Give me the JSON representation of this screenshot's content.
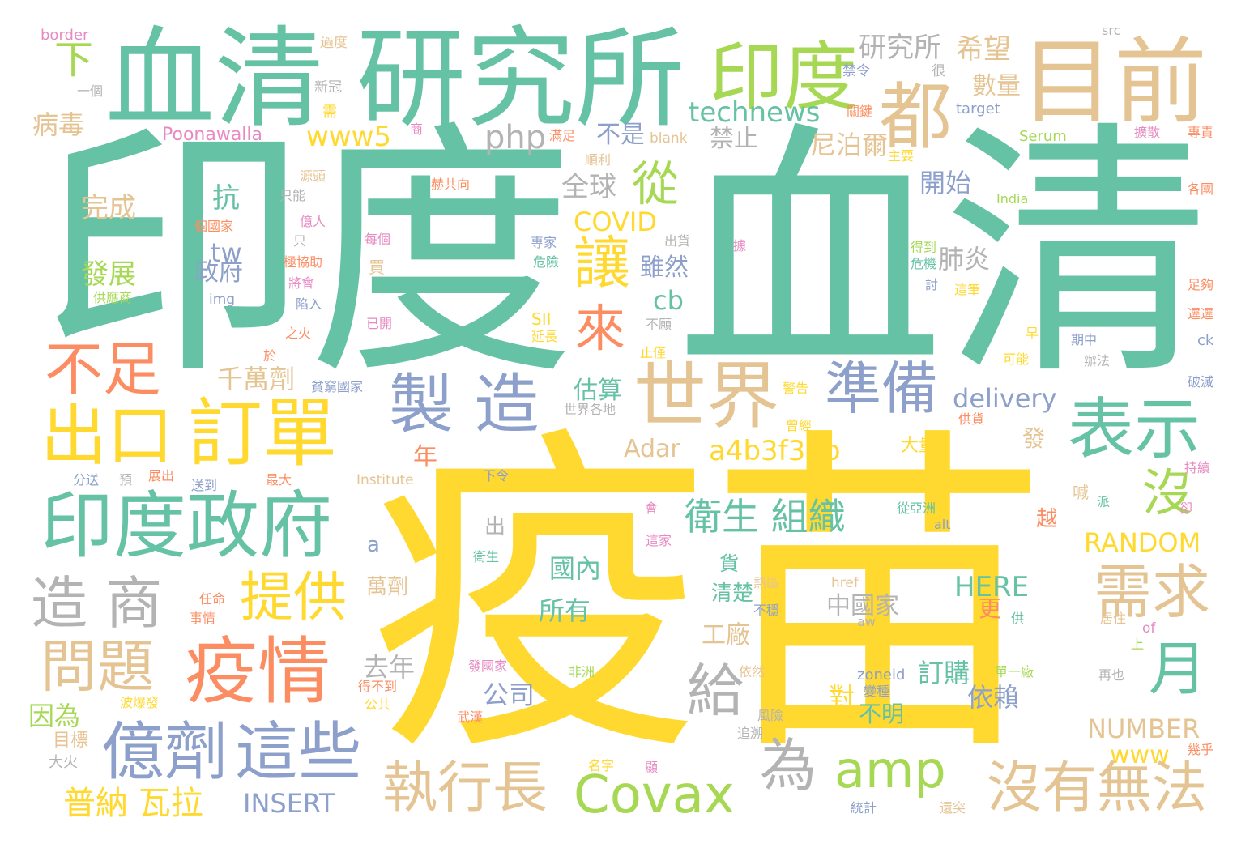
{
  "palette": {
    "teal": "#66c2a5",
    "yellow": "#ffd92f",
    "green": "#a6d854",
    "orange": "#fc8d62",
    "blue": "#8da0cb",
    "tan": "#e5c494",
    "gray": "#b3b3b3",
    "pink": "#e78ac3"
  },
  "words": [
    {
      "id": "w1",
      "text": "印度",
      "c": "teal"
    },
    {
      "id": "w2",
      "text": "血清",
      "c": "teal"
    },
    {
      "id": "w3",
      "text": "疫苗",
      "c": "yellow"
    },
    {
      "id": "w4",
      "text": "血清",
      "c": "teal"
    },
    {
      "id": "w5",
      "text": "研究所",
      "c": "teal"
    },
    {
      "id": "w6",
      "text": "印度",
      "c": "green"
    },
    {
      "id": "w7",
      "text": "目前",
      "c": "tan"
    },
    {
      "id": "w8",
      "text": "都",
      "c": "tan"
    },
    {
      "id": "w9",
      "text": "下",
      "c": "green"
    },
    {
      "id": "w10",
      "text": "研究所",
      "c": "gray"
    },
    {
      "id": "w11",
      "text": "希望",
      "c": "tan"
    },
    {
      "id": "w12",
      "text": "數量",
      "c": "tan"
    },
    {
      "id": "w13",
      "text": "technews",
      "c": "teal"
    },
    {
      "id": "w14",
      "text": "php",
      "c": "gray"
    },
    {
      "id": "w15",
      "text": "www5",
      "c": "yellow"
    },
    {
      "id": "w16",
      "text": "不是",
      "c": "blue"
    },
    {
      "id": "w17",
      "text": "禁止",
      "c": "gray"
    },
    {
      "id": "w18",
      "text": "尼泊爾",
      "c": "tan"
    },
    {
      "id": "w19",
      "text": "開始",
      "c": "blue"
    },
    {
      "id": "w20",
      "text": "Poonawalla",
      "c": "pink"
    },
    {
      "id": "w21",
      "text": "病毒",
      "c": "tan"
    },
    {
      "id": "w22",
      "text": "從",
      "c": "green"
    },
    {
      "id": "w23",
      "text": "全球",
      "c": "gray"
    },
    {
      "id": "w24",
      "text": "讓",
      "c": "yellow"
    },
    {
      "id": "w25",
      "text": "COVID",
      "c": "yellow"
    },
    {
      "id": "w26",
      "text": "來",
      "c": "orange"
    },
    {
      "id": "w27",
      "text": "完成",
      "c": "tan"
    },
    {
      "id": "w28",
      "text": "抗",
      "c": "teal"
    },
    {
      "id": "w29",
      "text": "tw",
      "c": "blue"
    },
    {
      "id": "w30",
      "text": "政府",
      "c": "blue"
    },
    {
      "id": "w31",
      "text": "發展",
      "c": "green"
    },
    {
      "id": "w32",
      "text": "雖然",
      "c": "blue"
    },
    {
      "id": "w33",
      "text": "肺炎",
      "c": "gray"
    },
    {
      "id": "w34",
      "text": "cb",
      "c": "teal"
    },
    {
      "id": "w35",
      "text": "世界",
      "c": "tan"
    },
    {
      "id": "w36",
      "text": "準備",
      "c": "blue"
    },
    {
      "id": "w37",
      "text": "不足",
      "c": "orange"
    },
    {
      "id": "w38",
      "text": "製 造",
      "c": "blue"
    },
    {
      "id": "w39",
      "text": "表示",
      "c": "teal"
    },
    {
      "id": "w40",
      "text": "出口",
      "c": "yellow"
    },
    {
      "id": "w41",
      "text": "訂單",
      "c": "yellow"
    },
    {
      "id": "w42",
      "text": "千萬劑",
      "c": "tan"
    },
    {
      "id": "w43",
      "text": "估算",
      "c": "teal"
    },
    {
      "id": "w44",
      "text": "delivery",
      "c": "blue"
    },
    {
      "id": "w45",
      "text": "a4b3f35b",
      "c": "yellow"
    },
    {
      "id": "w46",
      "text": "Adar",
      "c": "tan"
    },
    {
      "id": "w47",
      "text": "印度政府",
      "c": "teal"
    },
    {
      "id": "w48",
      "text": "衛生 組織",
      "c": "teal"
    },
    {
      "id": "w49",
      "text": "沒",
      "c": "green"
    },
    {
      "id": "w50",
      "text": "RANDOM",
      "c": "yellow"
    },
    {
      "id": "w51",
      "text": "造 商",
      "c": "gray"
    },
    {
      "id": "w52",
      "text": "提供",
      "c": "yellow"
    },
    {
      "id": "w53",
      "text": "需求",
      "c": "tan"
    },
    {
      "id": "w54",
      "text": "國內",
      "c": "teal"
    },
    {
      "id": "w55",
      "text": "HERE",
      "c": "teal"
    },
    {
      "id": "w56",
      "text": "中國家",
      "c": "gray"
    },
    {
      "id": "w57",
      "text": "所有",
      "c": "teal"
    },
    {
      "id": "w58",
      "text": "問題",
      "c": "tan"
    },
    {
      "id": "w59",
      "text": "疫情",
      "c": "orange"
    },
    {
      "id": "w60",
      "text": "月",
      "c": "teal"
    },
    {
      "id": "w61",
      "text": "給",
      "c": "gray"
    },
    {
      "id": "w62",
      "text": "去年",
      "c": "gray"
    },
    {
      "id": "w63",
      "text": "工廠",
      "c": "tan"
    },
    {
      "id": "w64",
      "text": "公司",
      "c": "blue"
    },
    {
      "id": "w65",
      "text": "訂購",
      "c": "teal"
    },
    {
      "id": "w66",
      "text": "依賴",
      "c": "blue"
    },
    {
      "id": "w67",
      "text": "對",
      "c": "yellow"
    },
    {
      "id": "w68",
      "text": "不明",
      "c": "teal"
    },
    {
      "id": "w69",
      "text": "億劑",
      "c": "blue"
    },
    {
      "id": "w70",
      "text": "這些",
      "c": "blue"
    },
    {
      "id": "w71",
      "text": "為",
      "c": "gray"
    },
    {
      "id": "w72",
      "text": "amp",
      "c": "green"
    },
    {
      "id": "w73",
      "text": "NUMBER",
      "c": "tan"
    },
    {
      "id": "w74",
      "text": "www",
      "c": "yellow"
    },
    {
      "id": "w75",
      "text": "執行長",
      "c": "tan"
    },
    {
      "id": "w76",
      "text": "Covax",
      "c": "green"
    },
    {
      "id": "w77",
      "text": "沒有無法",
      "c": "tan"
    },
    {
      "id": "w78",
      "text": "普納 瓦拉",
      "c": "yellow"
    },
    {
      "id": "w79",
      "text": "INSERT",
      "c": "blue"
    },
    {
      "id": "w80",
      "text": "因為",
      "c": "green"
    },
    {
      "id": "w81",
      "text": "目標",
      "c": "tan"
    },
    {
      "id": "w82",
      "text": "大火",
      "c": "gray"
    },
    {
      "id": "w83",
      "text": "border",
      "c": "pink"
    },
    {
      "id": "w84",
      "text": "一個",
      "c": "gray"
    },
    {
      "id": "w85",
      "text": "過度",
      "c": "tan"
    },
    {
      "id": "w86",
      "text": "新冠",
      "c": "gray"
    },
    {
      "id": "w87",
      "text": "很",
      "c": "gray"
    },
    {
      "id": "w88",
      "text": "禁令",
      "c": "blue"
    },
    {
      "id": "w89",
      "text": "關鍵",
      "c": "orange"
    },
    {
      "id": "w90",
      "text": "src",
      "c": "gray"
    },
    {
      "id": "w91",
      "text": "target",
      "c": "blue"
    },
    {
      "id": "w92",
      "text": "需",
      "c": "yellow"
    },
    {
      "id": "w93",
      "text": "商",
      "c": "pink"
    },
    {
      "id": "w94",
      "text": "滿足",
      "c": "orange"
    },
    {
      "id": "w95",
      "text": "blank",
      "c": "tan"
    },
    {
      "id": "w96",
      "text": "Serum",
      "c": "green"
    },
    {
      "id": "w97",
      "text": "擴散",
      "c": "pink"
    },
    {
      "id": "w98",
      "text": "專責",
      "c": "orange"
    },
    {
      "id": "w99",
      "text": "順利",
      "c": "tan"
    },
    {
      "id": "w100",
      "text": "主要",
      "c": "yellow"
    },
    {
      "id": "w101",
      "text": "源頭",
      "c": "tan"
    },
    {
      "id": "w102",
      "text": "赫共向",
      "c": "orange"
    },
    {
      "id": "w103",
      "text": "只能",
      "c": "gray"
    },
    {
      "id": "w104",
      "text": "India",
      "c": "green"
    },
    {
      "id": "w105",
      "text": "各國",
      "c": "orange"
    },
    {
      "id": "w106",
      "text": "個國家",
      "c": "orange"
    },
    {
      "id": "w107",
      "text": "億人",
      "c": "pink"
    },
    {
      "id": "w108",
      "text": "每個",
      "c": "pink"
    },
    {
      "id": "w109",
      "text": "專家",
      "c": "blue"
    },
    {
      "id": "w110",
      "text": "出貨",
      "c": "gray"
    },
    {
      "id": "w111",
      "text": "據",
      "c": "pink"
    },
    {
      "id": "w112",
      "text": "得到",
      "c": "green"
    },
    {
      "id": "w113",
      "text": "只",
      "c": "gray"
    },
    {
      "id": "w114",
      "text": "買",
      "c": "tan"
    },
    {
      "id": "w115",
      "text": "危險",
      "c": "teal"
    },
    {
      "id": "w116",
      "text": "危機",
      "c": "teal"
    },
    {
      "id": "w117",
      "text": "極協助",
      "c": "orange"
    },
    {
      "id": "w118",
      "text": "將會",
      "c": "pink"
    },
    {
      "id": "w119",
      "text": "討",
      "c": "blue"
    },
    {
      "id": "w120",
      "text": "這筆",
      "c": "yellow"
    },
    {
      "id": "w121",
      "text": "足夠",
      "c": "orange"
    },
    {
      "id": "w122",
      "text": "供應商",
      "c": "green"
    },
    {
      "id": "w123",
      "text": "img",
      "c": "blue"
    },
    {
      "id": "w124",
      "text": "陷入",
      "c": "blue"
    },
    {
      "id": "w125",
      "text": "遲遲",
      "c": "orange"
    },
    {
      "id": "w126",
      "text": "SII",
      "c": "yellow"
    },
    {
      "id": "w127",
      "text": "已開",
      "c": "pink"
    },
    {
      "id": "w128",
      "text": "之火",
      "c": "orange"
    },
    {
      "id": "w129",
      "text": "不願",
      "c": "gray"
    },
    {
      "id": "w130",
      "text": "早",
      "c": "yellow"
    },
    {
      "id": "w131",
      "text": "延長",
      "c": "yellow"
    },
    {
      "id": "w132",
      "text": "止僅",
      "c": "yellow"
    },
    {
      "id": "w133",
      "text": "期中",
      "c": "blue"
    },
    {
      "id": "w134",
      "text": "ck",
      "c": "blue"
    },
    {
      "id": "w135",
      "text": "於",
      "c": "orange"
    },
    {
      "id": "w136",
      "text": "可能",
      "c": "yellow"
    },
    {
      "id": "w137",
      "text": "辦法",
      "c": "gray"
    },
    {
      "id": "w138",
      "text": "破滅",
      "c": "blue"
    },
    {
      "id": "w139",
      "text": "貧窮國家",
      "c": "blue"
    },
    {
      "id": "w140",
      "text": "警告",
      "c": "yellow"
    },
    {
      "id": "w141",
      "text": "世界各地",
      "c": "gray"
    },
    {
      "id": "w142",
      "text": "曾經",
      "c": "yellow"
    },
    {
      "id": "w143",
      "text": "供貨",
      "c": "orange"
    },
    {
      "id": "w144",
      "text": "年",
      "c": "orange"
    },
    {
      "id": "w145",
      "text": "大量",
      "c": "yellow"
    },
    {
      "id": "w146",
      "text": "發",
      "c": "tan"
    },
    {
      "id": "w147",
      "text": "持續",
      "c": "pink"
    },
    {
      "id": "w148",
      "text": "分送",
      "c": "blue"
    },
    {
      "id": "w149",
      "text": "預",
      "c": "gray"
    },
    {
      "id": "w150",
      "text": "展出",
      "c": "orange"
    },
    {
      "id": "w151",
      "text": "最大",
      "c": "orange"
    },
    {
      "id": "w152",
      "text": "下令",
      "c": "blue"
    },
    {
      "id": "w153",
      "text": "送到",
      "c": "blue"
    },
    {
      "id": "w154",
      "text": "Institute",
      "c": "tan"
    },
    {
      "id": "w155",
      "text": "喊",
      "c": "tan"
    },
    {
      "id": "w156",
      "text": "派",
      "c": "teal"
    },
    {
      "id": "w157",
      "text": "卻",
      "c": "pink"
    },
    {
      "id": "w158",
      "text": "會",
      "c": "pink"
    },
    {
      "id": "w159",
      "text": "從亞洲",
      "c": "teal"
    },
    {
      "id": "w160",
      "text": "alt",
      "c": "blue"
    },
    {
      "id": "w161",
      "text": "出",
      "c": "gray"
    },
    {
      "id": "w162",
      "text": "越",
      "c": "orange"
    },
    {
      "id": "w163",
      "text": "a",
      "c": "blue"
    },
    {
      "id": "w164",
      "text": "衛生",
      "c": "teal"
    },
    {
      "id": "w165",
      "text": "這家",
      "c": "pink"
    },
    {
      "id": "w166",
      "text": "熱區",
      "c": "tan"
    },
    {
      "id": "w167",
      "text": "貨",
      "c": "teal"
    },
    {
      "id": "w168",
      "text": "萬劑",
      "c": "tan"
    },
    {
      "id": "w169",
      "text": "任命",
      "c": "orange"
    },
    {
      "id": "w170",
      "text": "事情",
      "c": "orange"
    },
    {
      "id": "w171",
      "text": "href",
      "c": "tan"
    },
    {
      "id": "w172",
      "text": "aw",
      "c": "gray"
    },
    {
      "id": "w173",
      "text": "清楚",
      "c": "teal"
    },
    {
      "id": "w174",
      "text": "不穩",
      "c": "blue"
    },
    {
      "id": "w175",
      "text": "更",
      "c": "orange"
    },
    {
      "id": "w176",
      "text": "供",
      "c": "teal"
    },
    {
      "id": "w177",
      "text": "居住",
      "c": "tan"
    },
    {
      "id": "w178",
      "text": "上",
      "c": "green"
    },
    {
      "id": "w179",
      "text": "of",
      "c": "pink"
    },
    {
      "id": "w180",
      "text": "非洲",
      "c": "green"
    },
    {
      "id": "w181",
      "text": "發國家",
      "c": "pink"
    },
    {
      "id": "w182",
      "text": "依然",
      "c": "tan"
    },
    {
      "id": "w183",
      "text": "zoneid",
      "c": "blue"
    },
    {
      "id": "w184",
      "text": "單一廠",
      "c": "green"
    },
    {
      "id": "w185",
      "text": "再也",
      "c": "gray"
    },
    {
      "id": "w186",
      "text": "波爆發",
      "c": "yellow"
    },
    {
      "id": "w187",
      "text": "得不到",
      "c": "orange"
    },
    {
      "id": "w188",
      "text": "公共",
      "c": "yellow"
    },
    {
      "id": "w189",
      "text": "變種",
      "c": "blue"
    },
    {
      "id": "w190",
      "text": "風險",
      "c": "gray"
    },
    {
      "id": "w191",
      "text": "武漢",
      "c": "orange"
    },
    {
      "id": "w192",
      "text": "追溯",
      "c": "gray"
    },
    {
      "id": "w193",
      "text": "幾乎",
      "c": "orange"
    },
    {
      "id": "w194",
      "text": "名字",
      "c": "yellow"
    },
    {
      "id": "w195",
      "text": "顯",
      "c": "pink"
    },
    {
      "id": "w196",
      "text": "統計",
      "c": "blue"
    },
    {
      "id": "w197",
      "text": "還突",
      "c": "tan"
    }
  ]
}
